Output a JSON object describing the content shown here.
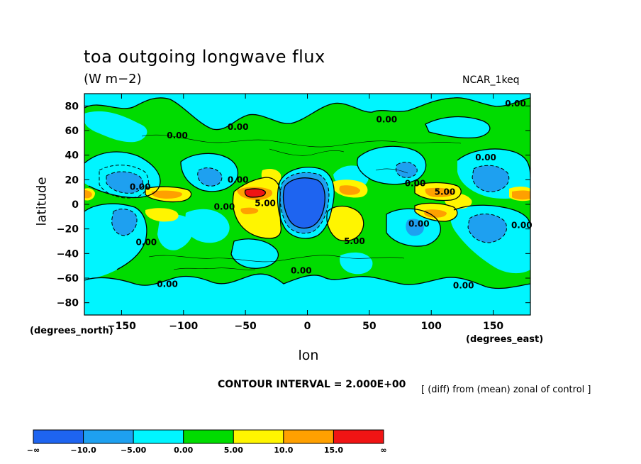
{
  "chart_data": {
    "type": "heatmap",
    "title": "toa outgoing longwave flux",
    "units": "(W m−2)",
    "model": "NCAR_1keq",
    "xlabel": "lon",
    "ylabel": "latitude",
    "x_unit_label": "(degrees_east)",
    "y_unit_label": "(degrees_north)",
    "xlim": [
      -180,
      180
    ],
    "ylim": [
      -90,
      90
    ],
    "x_ticks": [
      -150,
      -100,
      -50,
      0,
      50,
      100,
      150
    ],
    "y_ticks": [
      80,
      60,
      40,
      20,
      0,
      -20,
      -40,
      -60,
      -80
    ],
    "x_tick_labels": [
      "−150",
      "−100",
      "−50",
      "0",
      "50",
      "100",
      "150"
    ],
    "y_tick_labels": [
      "80",
      "60",
      "40",
      "20",
      "0",
      "−20",
      "−40",
      "−60",
      "−80"
    ],
    "contour_interval": "CONTOUR INTERVAL = 2.000E+00",
    "note": "[ (diff) from (mean) zonal of control ]",
    "colorbar": {
      "levels": [
        "−∞",
        "−10.0",
        "−5.00",
        "0.00",
        "5.00",
        "10.0",
        "15.0",
        "∞"
      ],
      "colors": [
        "#1e64f0",
        "#1ea0f0",
        "#00f5ff",
        "#00dc00",
        "#fff500",
        "#ffa000",
        "#f01414"
      ]
    },
    "contour_labels": [
      {
        "text": "0.00",
        "lon": -135,
        "lat": 14
      },
      {
        "text": "0.00",
        "lon": -130,
        "lat": -31
      },
      {
        "text": "0.00",
        "lon": -113,
        "lat": -65
      },
      {
        "text": "0.00",
        "lon": -105,
        "lat": 56
      },
      {
        "text": "0.00",
        "lon": -56,
        "lat": 63
      },
      {
        "text": "0.00",
        "lon": -67,
        "lat": -2
      },
      {
        "text": "0.00",
        "lon": -56,
        "lat": 20
      },
      {
        "text": "0.00",
        "lon": -5,
        "lat": -54
      },
      {
        "text": "0.00",
        "lon": 64,
        "lat": 69
      },
      {
        "text": "0.00",
        "lon": 87,
        "lat": 17
      },
      {
        "text": "0.00",
        "lon": 90,
        "lat": -16
      },
      {
        "text": "0.00",
        "lon": 144,
        "lat": 38
      },
      {
        "text": "0.00",
        "lon": 168,
        "lat": 82
      },
      {
        "text": "0.00",
        "lon": 126,
        "lat": -66
      },
      {
        "text": "0.00",
        "lon": 173,
        "lat": -17
      },
      {
        "text": "5.00",
        "lon": 111,
        "lat": 10
      },
      {
        "text": "5.00",
        "lon": 38,
        "lat": -30
      },
      {
        "text": "5.00",
        "lon": -34,
        "lat": 1
      }
    ]
  }
}
